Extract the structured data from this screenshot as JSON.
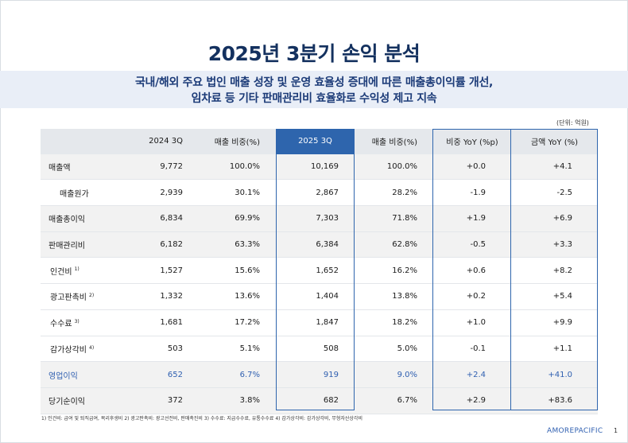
{
  "title": "2025년 3분기 손익 분석",
  "subtitle": {
    "line1": "국내/해외 주요 법인 매출 성장 및 운영 효율성 증대에 따른 매출총이익률 개선,",
    "line2": "임차료 등 기타 판매관리비 효율화로 수익성 제고 지속"
  },
  "unit": "(단위: 억원)",
  "table": {
    "headers": [
      "",
      "2024 3Q",
      "매출 비중(%)",
      "2025 3Q",
      "매출 비중(%)",
      "비중 YoY (%p)",
      "금액 YoY (%)"
    ],
    "rows": [
      {
        "label": "매출액",
        "note": "",
        "v2024": "9,772",
        "r2024": "100.0%",
        "v2025": "10,169",
        "r2025": "100.0%",
        "ratio_yoy": "+0.0",
        "amount_yoy": "+4.1"
      },
      {
        "label": "매출원가",
        "note": "",
        "v2024": "2,939",
        "r2024": "30.1%",
        "v2025": "2,867",
        "r2025": "28.2%",
        "ratio_yoy": "-1.9",
        "amount_yoy": "-2.5"
      },
      {
        "label": "매출총이익",
        "note": "",
        "v2024": "6,834",
        "r2024": "69.9%",
        "v2025": "7,303",
        "r2025": "71.8%",
        "ratio_yoy": "+1.9",
        "amount_yoy": "+6.9"
      },
      {
        "label": "판매관리비",
        "note": "",
        "v2024": "6,182",
        "r2024": "63.3%",
        "v2025": "6,384",
        "r2025": "62.8%",
        "ratio_yoy": "-0.5",
        "amount_yoy": "+3.3"
      },
      {
        "label": "인건비",
        "note": "1)",
        "v2024": "1,527",
        "r2024": "15.6%",
        "v2025": "1,652",
        "r2025": "16.2%",
        "ratio_yoy": "+0.6",
        "amount_yoy": "+8.2"
      },
      {
        "label": "광고판촉비",
        "note": "2)",
        "v2024": "1,332",
        "r2024": "13.6%",
        "v2025": "1,404",
        "r2025": "13.8%",
        "ratio_yoy": "+0.2",
        "amount_yoy": "+5.4"
      },
      {
        "label": "수수료",
        "note": "3)",
        "v2024": "1,681",
        "r2024": "17.2%",
        "v2025": "1,847",
        "r2025": "18.2%",
        "ratio_yoy": "+1.0",
        "amount_yoy": "+9.9"
      },
      {
        "label": "감가상각비",
        "note": "4)",
        "v2024": "503",
        "r2024": "5.1%",
        "v2025": "508",
        "r2025": "5.0%",
        "ratio_yoy": "-0.1",
        "amount_yoy": "+1.1"
      },
      {
        "label": "영업이익",
        "note": "",
        "v2024": "652",
        "r2024": "6.7%",
        "v2025": "919",
        "r2025": "9.0%",
        "ratio_yoy": "+2.4",
        "amount_yoy": "+41.0"
      },
      {
        "label": "당기순이익",
        "note": "",
        "v2024": "372",
        "r2024": "3.8%",
        "v2025": "682",
        "r2025": "6.7%",
        "ratio_yoy": "+2.9",
        "amount_yoy": "+83.6"
      }
    ]
  },
  "footnote": "1) 인건비: 급여 및 퇴직급여, 복리후생비 2) 광고판촉비: 광고선전비, 판매촉진비 3) 수수료: 지급수수료, 유통수수료 4) 감가상각비: 감가상각비, 무형자산상각비",
  "logo": "AMOREPACIFIC",
  "page_number": "1",
  "colors": {
    "title": "#14315f",
    "accent": "#2e65ad",
    "band": "#e9eef7",
    "highlight_text": "#2f5fb0"
  }
}
